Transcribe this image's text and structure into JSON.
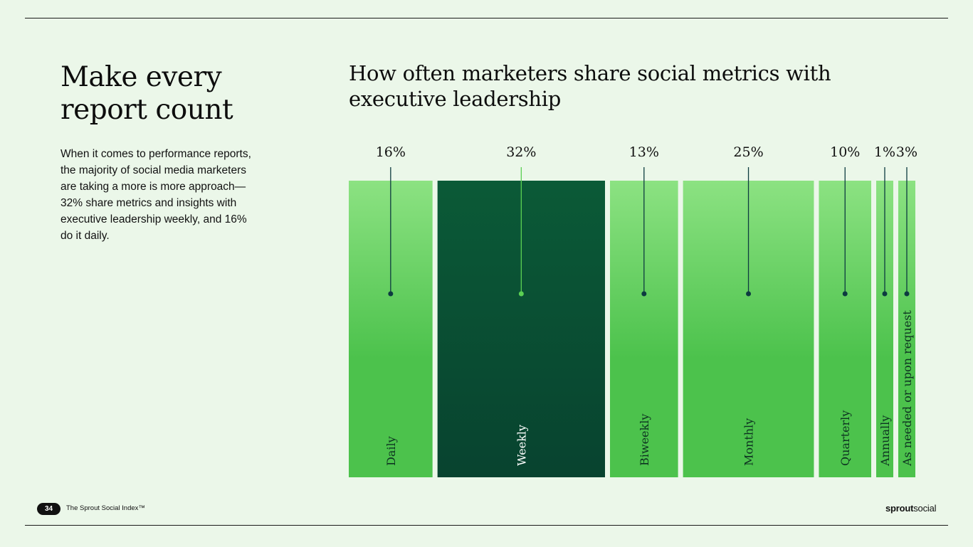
{
  "page": {
    "headline": "Make every report count",
    "body": "When it comes to performance reports, the majority of social media marketers are taking a more is more approach—32% share metrics and insights with executive leadership weekly, and 16% do it daily.",
    "chart_title": "How often marketers share social metrics with executive leadership",
    "footer": {
      "page_number": "34",
      "publication": "The Sprout Social Index™",
      "brand_bold": "sprout",
      "brand_regular": "social"
    }
  },
  "colors": {
    "background": "#ebf7e9",
    "bar_light_top": "#8ce282",
    "bar_light_bottom": "#4cc24c",
    "bar_highlight_top": "#0b5a37",
    "bar_highlight_bottom": "#08432f",
    "leader_dark": "#0d3b40",
    "leader_highlight": "#5bd053"
  },
  "chart_data": {
    "type": "bar",
    "subtype": "proportional-width-columns",
    "title": "How often marketers share social metrics with executive leadership",
    "categories": [
      "Daily",
      "Weekly",
      "Biweekly",
      "Monthly",
      "Quarterly",
      "Annually",
      "As needed or upon request"
    ],
    "values": [
      16,
      32,
      13,
      25,
      10,
      1,
      3
    ],
    "value_labels": [
      "16%",
      "32%",
      "13%",
      "25%",
      "10%",
      "1%",
      "3%"
    ],
    "unit": "%",
    "highlighted_category": "Weekly",
    "xlabel": "",
    "ylabel": "",
    "grid": false,
    "legend": "none"
  }
}
